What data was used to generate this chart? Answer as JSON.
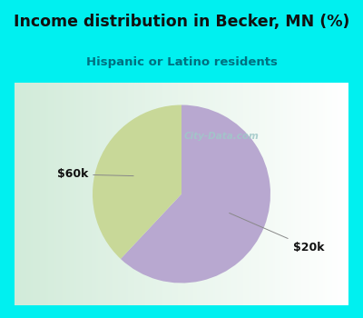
{
  "title": "Income distribution in Becker, MN (%)",
  "subtitle": "Hispanic or Latino residents",
  "slices": [
    {
      "label": "$20k",
      "value": 62,
      "color": "#b8a8d0"
    },
    {
      "label": "$60k",
      "value": 38,
      "color": "#c8d898"
    }
  ],
  "bg_cyan": "#00f0f0",
  "chart_bg_left": "#d8eedc",
  "chart_bg_right": "#ffffff",
  "title_color": "#111111",
  "subtitle_color": "#007080",
  "label_color": "#111111",
  "line_color": "#888888",
  "watermark": "City-Data.com",
  "watermark_color": "#a0c8c8",
  "figsize": [
    4.0,
    3.5
  ],
  "dpi": 100
}
